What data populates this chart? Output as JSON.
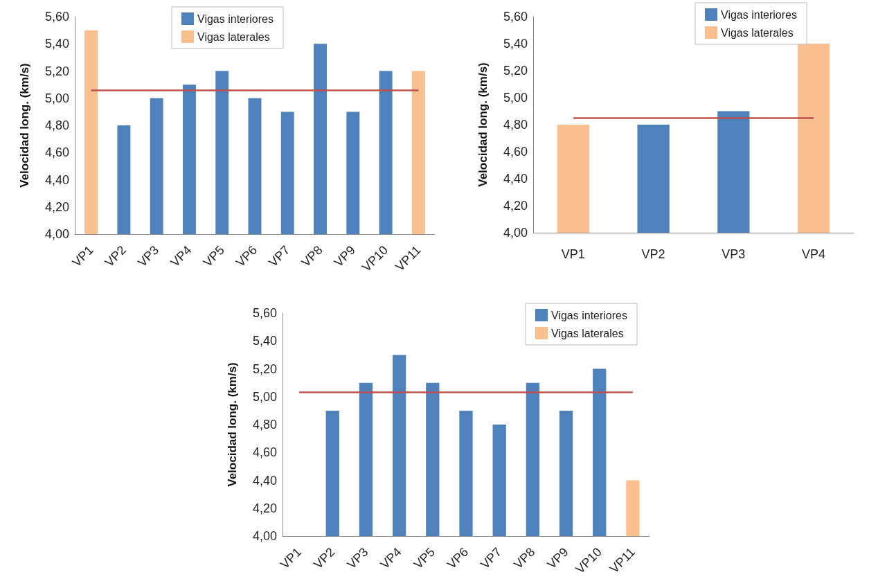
{
  "chart_data": [
    {
      "type": "bar",
      "ylabel": "Velocidad long. (km/s)",
      "categories": [
        "VP1",
        "VP2",
        "VP3",
        "VP4",
        "VP5",
        "VP6",
        "VP7",
        "VP8",
        "VP9",
        "VP10",
        "VP11"
      ],
      "stacked": true,
      "series": [
        {
          "name": "Vigas interiores",
          "color": "#4f81bd",
          "values": [
            null,
            4.8,
            5.0,
            5.1,
            5.2,
            5.0,
            4.9,
            5.4,
            4.9,
            5.2,
            null
          ]
        },
        {
          "name": "Vigas laterales",
          "color": "#fac08f",
          "values": [
            5.5,
            null,
            null,
            null,
            null,
            null,
            null,
            null,
            null,
            null,
            5.2
          ]
        }
      ],
      "ylim": [
        4.0,
        5.6
      ],
      "yticks": [
        {
          "value": 4.0,
          "label": "4,00"
        },
        {
          "value": 4.2,
          "label": "4,20"
        },
        {
          "value": 4.4,
          "label": "4,40"
        },
        {
          "value": 4.6,
          "label": "4,60"
        },
        {
          "value": 4.8,
          "label": "4,80"
        },
        {
          "value": 5.0,
          "label": "5,00"
        },
        {
          "value": 5.2,
          "label": "5,20"
        },
        {
          "value": 5.4,
          "label": "5,40"
        },
        {
          "value": 5.6,
          "label": "5,60"
        }
      ],
      "ref_lines": [
        {
          "axis": "y",
          "value": 5.06,
          "color": "#c0504d"
        }
      ],
      "grid": false,
      "legend": "top"
    },
    {
      "type": "bar",
      "ylabel": "Velocidad long. (km/s)",
      "categories": [
        "VP1",
        "VP2",
        "VP3",
        "VP4"
      ],
      "stacked": true,
      "series": [
        {
          "name": "Vigas interiores",
          "color": "#4f81bd",
          "values": [
            null,
            4.8,
            4.9,
            null
          ]
        },
        {
          "name": "Vigas laterales",
          "color": "#fac08f",
          "values": [
            4.8,
            null,
            null,
            5.4
          ]
        }
      ],
      "ylim": [
        4.0,
        5.6
      ],
      "yticks": [
        {
          "value": 4.0,
          "label": "4,00"
        },
        {
          "value": 4.2,
          "label": "4,20"
        },
        {
          "value": 4.4,
          "label": "4,40"
        },
        {
          "value": 4.6,
          "label": "4,60"
        },
        {
          "value": 4.8,
          "label": "4,80"
        },
        {
          "value": 5.0,
          "label": "5,00"
        },
        {
          "value": 5.2,
          "label": "5,20"
        },
        {
          "value": 5.4,
          "label": "5,40"
        },
        {
          "value": 5.6,
          "label": "5,60"
        }
      ],
      "ref_lines": [
        {
          "axis": "y",
          "value": 4.85,
          "color": "#c0504d"
        }
      ],
      "grid": false,
      "legend": "top right"
    },
    {
      "type": "bar",
      "ylabel": "Velocidad long. (km/s)",
      "categories": [
        "VP1",
        "VP2",
        "VP3",
        "VP4",
        "VP5",
        "VP6",
        "VP7",
        "VP8",
        "VP9",
        "VP10",
        "VP11"
      ],
      "stacked": true,
      "series": [
        {
          "name": "Vigas interiores",
          "color": "#4f81bd",
          "values": [
            null,
            4.9,
            5.1,
            5.3,
            5.1,
            4.9,
            4.8,
            5.1,
            4.9,
            5.2,
            null
          ]
        },
        {
          "name": "Vigas laterales",
          "color": "#fac08f",
          "values": [
            null,
            null,
            null,
            null,
            null,
            null,
            null,
            null,
            null,
            null,
            4.4
          ]
        }
      ],
      "ylim": [
        4.0,
        5.6
      ],
      "yticks": [
        {
          "value": 4.0,
          "label": "4,00"
        },
        {
          "value": 4.2,
          "label": "4,20"
        },
        {
          "value": 4.4,
          "label": "4,40"
        },
        {
          "value": 4.6,
          "label": "4,60"
        },
        {
          "value": 4.8,
          "label": "4,80"
        },
        {
          "value": 5.0,
          "label": "5,00"
        },
        {
          "value": 5.2,
          "label": "5,20"
        },
        {
          "value": 5.4,
          "label": "5,40"
        },
        {
          "value": 5.6,
          "label": "5,60"
        }
      ],
      "ref_lines": [
        {
          "axis": "y",
          "value": 5.03,
          "color": "#c0504d"
        }
      ],
      "grid": false,
      "legend": "top right"
    }
  ]
}
